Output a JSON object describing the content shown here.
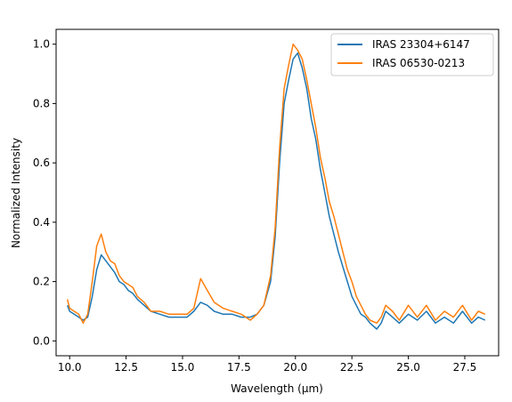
{
  "chart_data": {
    "type": "line",
    "title": "",
    "xlabel": "Wavelength (μm)",
    "ylabel": "Normalized Intensity",
    "xlim": [
      9.4,
      29.0
    ],
    "ylim": [
      -0.05,
      1.05
    ],
    "xticks": [
      10.0,
      12.5,
      15.0,
      17.5,
      20.0,
      22.5,
      25.0,
      27.5
    ],
    "xtick_labels": [
      "10.0",
      "12.5",
      "15.0",
      "17.5",
      "20.0",
      "22.5",
      "25.0",
      "27.5"
    ],
    "yticks": [
      0.0,
      0.2,
      0.4,
      0.6,
      0.8,
      1.0
    ],
    "ytick_labels": [
      "0.0",
      "0.2",
      "0.4",
      "0.6",
      "0.8",
      "1.0"
    ],
    "grid": false,
    "legend_position": "top-right",
    "series": [
      {
        "name": "IRAS 23304+6147",
        "color": "#1f77b4",
        "x": [
          9.9,
          10.0,
          10.2,
          10.4,
          10.6,
          10.8,
          11.0,
          11.2,
          11.4,
          11.6,
          11.8,
          12.0,
          12.2,
          12.4,
          12.6,
          12.8,
          13.0,
          13.3,
          13.6,
          14.0,
          14.4,
          14.8,
          15.2,
          15.5,
          15.8,
          16.1,
          16.4,
          16.8,
          17.2,
          17.6,
          18.0,
          18.3,
          18.6,
          18.9,
          19.1,
          19.3,
          19.5,
          19.7,
          19.9,
          20.1,
          20.3,
          20.5,
          20.7,
          20.9,
          21.1,
          21.3,
          21.5,
          21.7,
          21.9,
          22.1,
          22.3,
          22.5,
          22.7,
          22.9,
          23.1,
          23.3,
          23.6,
          23.8,
          24.0,
          24.3,
          24.6,
          25.0,
          25.4,
          25.8,
          26.2,
          26.6,
          27.0,
          27.4,
          27.8,
          28.1,
          28.4
        ],
        "y": [
          0.12,
          0.1,
          0.09,
          0.08,
          0.07,
          0.08,
          0.15,
          0.24,
          0.29,
          0.27,
          0.25,
          0.23,
          0.2,
          0.19,
          0.17,
          0.16,
          0.14,
          0.12,
          0.1,
          0.09,
          0.08,
          0.08,
          0.08,
          0.1,
          0.13,
          0.12,
          0.1,
          0.09,
          0.09,
          0.08,
          0.08,
          0.09,
          0.12,
          0.2,
          0.35,
          0.6,
          0.8,
          0.88,
          0.95,
          0.97,
          0.92,
          0.85,
          0.75,
          0.68,
          0.58,
          0.5,
          0.42,
          0.36,
          0.3,
          0.25,
          0.2,
          0.15,
          0.12,
          0.09,
          0.08,
          0.06,
          0.04,
          0.06,
          0.1,
          0.08,
          0.06,
          0.09,
          0.07,
          0.1,
          0.06,
          0.08,
          0.06,
          0.1,
          0.06,
          0.08,
          0.07
        ]
      },
      {
        "name": "IRAS 06530-0213",
        "color": "#ff7f0e",
        "x": [
          9.9,
          10.0,
          10.2,
          10.4,
          10.6,
          10.8,
          11.0,
          11.2,
          11.4,
          11.6,
          11.8,
          12.0,
          12.2,
          12.4,
          12.6,
          12.8,
          13.0,
          13.3,
          13.6,
          14.0,
          14.4,
          14.8,
          15.2,
          15.5,
          15.8,
          16.1,
          16.4,
          16.8,
          17.2,
          17.6,
          18.0,
          18.3,
          18.6,
          18.9,
          19.1,
          19.3,
          19.5,
          19.7,
          19.9,
          20.1,
          20.3,
          20.5,
          20.7,
          20.9,
          21.1,
          21.3,
          21.5,
          21.7,
          21.9,
          22.1,
          22.3,
          22.5,
          22.7,
          22.9,
          23.1,
          23.3,
          23.6,
          23.8,
          24.0,
          24.3,
          24.6,
          25.0,
          25.4,
          25.8,
          26.2,
          26.6,
          27.0,
          27.4,
          27.8,
          28.1,
          28.4
        ],
        "y": [
          0.14,
          0.11,
          0.1,
          0.09,
          0.06,
          0.09,
          0.2,
          0.32,
          0.36,
          0.3,
          0.27,
          0.26,
          0.22,
          0.2,
          0.19,
          0.18,
          0.15,
          0.13,
          0.1,
          0.1,
          0.09,
          0.09,
          0.09,
          0.11,
          0.21,
          0.17,
          0.13,
          0.11,
          0.1,
          0.09,
          0.07,
          0.09,
          0.12,
          0.22,
          0.38,
          0.65,
          0.85,
          0.93,
          1.0,
          0.98,
          0.95,
          0.88,
          0.8,
          0.72,
          0.62,
          0.55,
          0.47,
          0.42,
          0.36,
          0.3,
          0.24,
          0.2,
          0.15,
          0.12,
          0.09,
          0.07,
          0.06,
          0.08,
          0.12,
          0.1,
          0.07,
          0.12,
          0.08,
          0.12,
          0.07,
          0.1,
          0.08,
          0.12,
          0.07,
          0.1,
          0.09
        ]
      }
    ]
  }
}
